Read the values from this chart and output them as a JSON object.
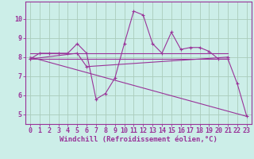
{
  "bg_color": "#cceee8",
  "line_color": "#993399",
  "grid_color": "#aaccbb",
  "xlabel": "Windchill (Refroidissement éolien,°C)",
  "xlabel_fontsize": 6.5,
  "tick_fontsize": 6.0,
  "xlim": [
    -0.5,
    23.5
  ],
  "ylim": [
    4.5,
    10.9
  ],
  "yticks": [
    5,
    6,
    7,
    8,
    9,
    10
  ],
  "xticks": [
    0,
    1,
    2,
    3,
    4,
    5,
    6,
    7,
    8,
    9,
    10,
    11,
    12,
    13,
    14,
    15,
    16,
    17,
    18,
    19,
    20,
    21,
    22,
    23
  ],
  "series1_x": [
    0,
    1,
    2,
    3,
    4,
    5,
    6,
    7,
    8,
    9,
    10,
    11,
    12,
    13,
    14,
    15,
    16,
    17,
    18,
    19,
    20,
    21,
    22,
    23
  ],
  "series1_y": [
    7.9,
    8.2,
    8.2,
    8.2,
    8.2,
    8.7,
    8.2,
    5.8,
    6.1,
    6.9,
    8.7,
    10.4,
    10.2,
    8.7,
    8.2,
    9.3,
    8.4,
    8.5,
    8.5,
    8.3,
    7.9,
    7.9,
    6.6,
    4.9
  ],
  "series2_x": [
    0,
    21
  ],
  "series2_y": [
    8.2,
    8.2
  ],
  "series3_x": [
    0,
    21
  ],
  "series3_y": [
    7.9,
    7.9
  ],
  "series4_x": [
    0,
    5,
    6,
    21
  ],
  "series4_y": [
    7.9,
    8.2,
    7.5,
    8.0
  ],
  "series5_x": [
    0,
    23
  ],
  "series5_y": [
    8.0,
    4.9
  ]
}
